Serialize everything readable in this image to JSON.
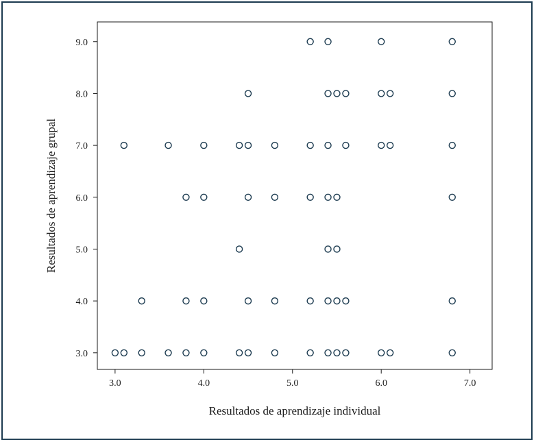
{
  "chart_data": {
    "type": "scatter",
    "xlabel": "Resultados de aprendizaje individual",
    "ylabel": "Resultados de aprendizaje grupal",
    "xlim": [
      2.8,
      7.25
    ],
    "ylim": [
      2.68,
      9.38
    ],
    "xticks": [
      3.0,
      4.0,
      5.0,
      6.0,
      7.0
    ],
    "yticks": [
      3.0,
      4.0,
      5.0,
      6.0,
      7.0,
      8.0,
      9.0
    ],
    "tick_labels_x": [
      "3.0",
      "4.0",
      "5.0",
      "6.0",
      "7.0"
    ],
    "tick_labels_y": [
      "3.0",
      "4.0",
      "5.0",
      "6.0",
      "7.0",
      "8.0",
      "9.0"
    ],
    "grid": false,
    "marker_color": "#1b3a4f",
    "points": [
      [
        5.2,
        9
      ],
      [
        5.4,
        9
      ],
      [
        6.0,
        9
      ],
      [
        6.8,
        9
      ],
      [
        4.5,
        8
      ],
      [
        5.4,
        8
      ],
      [
        5.5,
        8
      ],
      [
        5.6,
        8
      ],
      [
        6.0,
        8
      ],
      [
        6.1,
        8
      ],
      [
        6.8,
        8
      ],
      [
        3.1,
        7
      ],
      [
        3.6,
        7
      ],
      [
        4.0,
        7
      ],
      [
        4.4,
        7
      ],
      [
        4.5,
        7
      ],
      [
        4.8,
        7
      ],
      [
        5.2,
        7
      ],
      [
        5.4,
        7
      ],
      [
        5.6,
        7
      ],
      [
        6.0,
        7
      ],
      [
        6.1,
        7
      ],
      [
        6.8,
        7
      ],
      [
        3.8,
        6
      ],
      [
        4.0,
        6
      ],
      [
        4.5,
        6
      ],
      [
        4.8,
        6
      ],
      [
        5.2,
        6
      ],
      [
        5.4,
        6
      ],
      [
        5.5,
        6
      ],
      [
        6.8,
        6
      ],
      [
        4.4,
        5
      ],
      [
        5.4,
        5
      ],
      [
        5.5,
        5
      ],
      [
        3.3,
        4
      ],
      [
        3.8,
        4
      ],
      [
        4.0,
        4
      ],
      [
        4.5,
        4
      ],
      [
        4.8,
        4
      ],
      [
        5.2,
        4
      ],
      [
        5.4,
        4
      ],
      [
        5.5,
        4
      ],
      [
        5.6,
        4
      ],
      [
        6.8,
        4
      ],
      [
        3.0,
        3
      ],
      [
        3.1,
        3
      ],
      [
        3.3,
        3
      ],
      [
        3.6,
        3
      ],
      [
        3.8,
        3
      ],
      [
        4.0,
        3
      ],
      [
        4.4,
        3
      ],
      [
        4.5,
        3
      ],
      [
        4.8,
        3
      ],
      [
        5.2,
        3
      ],
      [
        5.4,
        3
      ],
      [
        5.5,
        3
      ],
      [
        5.6,
        3
      ],
      [
        6.0,
        3
      ],
      [
        6.1,
        3
      ],
      [
        6.8,
        3
      ]
    ]
  }
}
